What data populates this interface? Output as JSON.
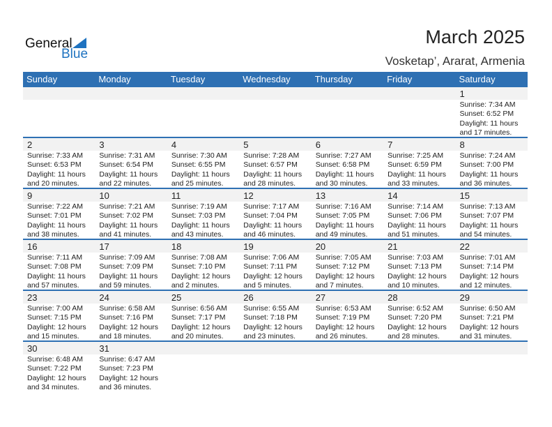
{
  "logo": {
    "word1": "General",
    "word2": "Blue"
  },
  "title": "March 2025",
  "location": "Vosketap’, Ararat, Armenia",
  "colors": {
    "header": "#2e70b3",
    "brand": "#1f73c0",
    "day_row": "#f2f2f2"
  },
  "weekdays": [
    "Sunday",
    "Monday",
    "Tuesday",
    "Wednesday",
    "Thursday",
    "Friday",
    "Saturday"
  ],
  "weeks": [
    [
      null,
      null,
      null,
      null,
      null,
      null,
      {
        "day": "1",
        "sunrise": "Sunrise: 7:34 AM",
        "sunset": "Sunset: 6:52 PM",
        "daylight1": "Daylight: 11 hours",
        "daylight2": "and 17 minutes."
      }
    ],
    [
      {
        "day": "2",
        "sunrise": "Sunrise: 7:33 AM",
        "sunset": "Sunset: 6:53 PM",
        "daylight1": "Daylight: 11 hours",
        "daylight2": "and 20 minutes."
      },
      {
        "day": "3",
        "sunrise": "Sunrise: 7:31 AM",
        "sunset": "Sunset: 6:54 PM",
        "daylight1": "Daylight: 11 hours",
        "daylight2": "and 22 minutes."
      },
      {
        "day": "4",
        "sunrise": "Sunrise: 7:30 AM",
        "sunset": "Sunset: 6:55 PM",
        "daylight1": "Daylight: 11 hours",
        "daylight2": "and 25 minutes."
      },
      {
        "day": "5",
        "sunrise": "Sunrise: 7:28 AM",
        "sunset": "Sunset: 6:57 PM",
        "daylight1": "Daylight: 11 hours",
        "daylight2": "and 28 minutes."
      },
      {
        "day": "6",
        "sunrise": "Sunrise: 7:27 AM",
        "sunset": "Sunset: 6:58 PM",
        "daylight1": "Daylight: 11 hours",
        "daylight2": "and 30 minutes."
      },
      {
        "day": "7",
        "sunrise": "Sunrise: 7:25 AM",
        "sunset": "Sunset: 6:59 PM",
        "daylight1": "Daylight: 11 hours",
        "daylight2": "and 33 minutes."
      },
      {
        "day": "8",
        "sunrise": "Sunrise: 7:24 AM",
        "sunset": "Sunset: 7:00 PM",
        "daylight1": "Daylight: 11 hours",
        "daylight2": "and 36 minutes."
      }
    ],
    [
      {
        "day": "9",
        "sunrise": "Sunrise: 7:22 AM",
        "sunset": "Sunset: 7:01 PM",
        "daylight1": "Daylight: 11 hours",
        "daylight2": "and 38 minutes."
      },
      {
        "day": "10",
        "sunrise": "Sunrise: 7:21 AM",
        "sunset": "Sunset: 7:02 PM",
        "daylight1": "Daylight: 11 hours",
        "daylight2": "and 41 minutes."
      },
      {
        "day": "11",
        "sunrise": "Sunrise: 7:19 AM",
        "sunset": "Sunset: 7:03 PM",
        "daylight1": "Daylight: 11 hours",
        "daylight2": "and 43 minutes."
      },
      {
        "day": "12",
        "sunrise": "Sunrise: 7:17 AM",
        "sunset": "Sunset: 7:04 PM",
        "daylight1": "Daylight: 11 hours",
        "daylight2": "and 46 minutes."
      },
      {
        "day": "13",
        "sunrise": "Sunrise: 7:16 AM",
        "sunset": "Sunset: 7:05 PM",
        "daylight1": "Daylight: 11 hours",
        "daylight2": "and 49 minutes."
      },
      {
        "day": "14",
        "sunrise": "Sunrise: 7:14 AM",
        "sunset": "Sunset: 7:06 PM",
        "daylight1": "Daylight: 11 hours",
        "daylight2": "and 51 minutes."
      },
      {
        "day": "15",
        "sunrise": "Sunrise: 7:13 AM",
        "sunset": "Sunset: 7:07 PM",
        "daylight1": "Daylight: 11 hours",
        "daylight2": "and 54 minutes."
      }
    ],
    [
      {
        "day": "16",
        "sunrise": "Sunrise: 7:11 AM",
        "sunset": "Sunset: 7:08 PM",
        "daylight1": "Daylight: 11 hours",
        "daylight2": "and 57 minutes."
      },
      {
        "day": "17",
        "sunrise": "Sunrise: 7:09 AM",
        "sunset": "Sunset: 7:09 PM",
        "daylight1": "Daylight: 11 hours",
        "daylight2": "and 59 minutes."
      },
      {
        "day": "18",
        "sunrise": "Sunrise: 7:08 AM",
        "sunset": "Sunset: 7:10 PM",
        "daylight1": "Daylight: 12 hours",
        "daylight2": "and 2 minutes."
      },
      {
        "day": "19",
        "sunrise": "Sunrise: 7:06 AM",
        "sunset": "Sunset: 7:11 PM",
        "daylight1": "Daylight: 12 hours",
        "daylight2": "and 5 minutes."
      },
      {
        "day": "20",
        "sunrise": "Sunrise: 7:05 AM",
        "sunset": "Sunset: 7:12 PM",
        "daylight1": "Daylight: 12 hours",
        "daylight2": "and 7 minutes."
      },
      {
        "day": "21",
        "sunrise": "Sunrise: 7:03 AM",
        "sunset": "Sunset: 7:13 PM",
        "daylight1": "Daylight: 12 hours",
        "daylight2": "and 10 minutes."
      },
      {
        "day": "22",
        "sunrise": "Sunrise: 7:01 AM",
        "sunset": "Sunset: 7:14 PM",
        "daylight1": "Daylight: 12 hours",
        "daylight2": "and 12 minutes."
      }
    ],
    [
      {
        "day": "23",
        "sunrise": "Sunrise: 7:00 AM",
        "sunset": "Sunset: 7:15 PM",
        "daylight1": "Daylight: 12 hours",
        "daylight2": "and 15 minutes."
      },
      {
        "day": "24",
        "sunrise": "Sunrise: 6:58 AM",
        "sunset": "Sunset: 7:16 PM",
        "daylight1": "Daylight: 12 hours",
        "daylight2": "and 18 minutes."
      },
      {
        "day": "25",
        "sunrise": "Sunrise: 6:56 AM",
        "sunset": "Sunset: 7:17 PM",
        "daylight1": "Daylight: 12 hours",
        "daylight2": "and 20 minutes."
      },
      {
        "day": "26",
        "sunrise": "Sunrise: 6:55 AM",
        "sunset": "Sunset: 7:18 PM",
        "daylight1": "Daylight: 12 hours",
        "daylight2": "and 23 minutes."
      },
      {
        "day": "27",
        "sunrise": "Sunrise: 6:53 AM",
        "sunset": "Sunset: 7:19 PM",
        "daylight1": "Daylight: 12 hours",
        "daylight2": "and 26 minutes."
      },
      {
        "day": "28",
        "sunrise": "Sunrise: 6:52 AM",
        "sunset": "Sunset: 7:20 PM",
        "daylight1": "Daylight: 12 hours",
        "daylight2": "and 28 minutes."
      },
      {
        "day": "29",
        "sunrise": "Sunrise: 6:50 AM",
        "sunset": "Sunset: 7:21 PM",
        "daylight1": "Daylight: 12 hours",
        "daylight2": "and 31 minutes."
      }
    ],
    [
      {
        "day": "30",
        "sunrise": "Sunrise: 6:48 AM",
        "sunset": "Sunset: 7:22 PM",
        "daylight1": "Daylight: 12 hours",
        "daylight2": "and 34 minutes."
      },
      {
        "day": "31",
        "sunrise": "Sunrise: 6:47 AM",
        "sunset": "Sunset: 7:23 PM",
        "daylight1": "Daylight: 12 hours",
        "daylight2": "and 36 minutes."
      },
      null,
      null,
      null,
      null,
      null
    ]
  ]
}
